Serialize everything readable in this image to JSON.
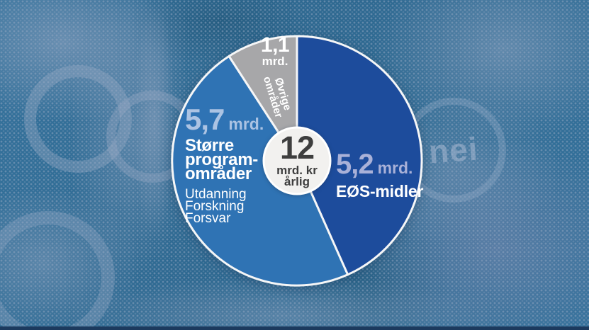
{
  "chart_data": {
    "type": "pie",
    "title": "",
    "total": 12,
    "direction": "clockwise",
    "start_angle_deg": 0,
    "legend_position": "on-slices",
    "center_label": {
      "value": "12",
      "line2": "mrd. kr",
      "line3": "årlig"
    },
    "slices": [
      {
        "id": "eos",
        "name": "EØS-midler",
        "value": 5.2,
        "value_label": "5,2",
        "unit_label": "mrd.",
        "color": "#1d4c9c",
        "value_color": "#a9b1d8"
      },
      {
        "id": "storre",
        "name": "Større programområder",
        "name_lines": [
          "Større",
          "program-",
          "områder"
        ],
        "sub_items": [
          "Utdanning",
          "Forskning",
          "Forsvar"
        ],
        "value": 5.7,
        "value_label": "5,7",
        "unit_label": "mrd.",
        "color": "#2f73b4",
        "value_color": "#abc3e3"
      },
      {
        "id": "ovrige",
        "name": "Øvrige områder",
        "name_lines": [
          "Øvrige",
          "områder"
        ],
        "value": 1.1,
        "value_label": "1,1",
        "unit_label": "mrd.",
        "color": "#a7a7a9",
        "value_color": "#ffffff"
      }
    ]
  },
  "background": {
    "badge_text": "nei",
    "base_color": "#2f6b94",
    "halftone_color": "#93a7c2",
    "bottom_bar_color": "#1c3a5e"
  }
}
